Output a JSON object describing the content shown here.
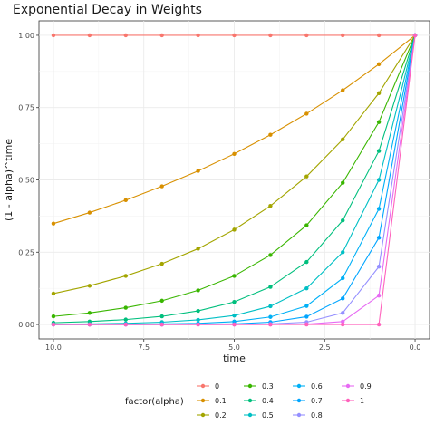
{
  "chart_data": {
    "type": "line",
    "title": "Exponential Decay in Weights",
    "xlabel": "time",
    "ylabel": "(1 - alpha)^time",
    "x": [
      10,
      9,
      8,
      7,
      6,
      5,
      4,
      3,
      2,
      1,
      0
    ],
    "xlim": [
      10.4,
      -0.4
    ],
    "x_reversed": true,
    "ylim": [
      -0.05,
      1.05
    ],
    "x_ticks": [
      10.0,
      7.5,
      5.0,
      2.5,
      0.0
    ],
    "x_tick_labels": [
      "10.0",
      "7.5",
      "5.0",
      "2.5",
      "0.0"
    ],
    "y_ticks": [
      0.0,
      0.25,
      0.5,
      0.75,
      1.0
    ],
    "y_tick_labels": [
      "0.00",
      "0.25",
      "0.50",
      "0.75",
      "1.00"
    ],
    "grid": true,
    "legend": {
      "title": "factor(alpha)",
      "placement": "bottom"
    },
    "series": [
      {
        "name": "0",
        "color": "#F8766D",
        "values": [
          1,
          1,
          1,
          1,
          1,
          1,
          1,
          1,
          1,
          1,
          1
        ]
      },
      {
        "name": "0.1",
        "color": "#D89000",
        "values": [
          0.349,
          0.387,
          0.43,
          0.478,
          0.531,
          0.59,
          0.656,
          0.729,
          0.81,
          0.9,
          1
        ]
      },
      {
        "name": "0.2",
        "color": "#A3A500",
        "values": [
          0.107,
          0.134,
          0.168,
          0.21,
          0.262,
          0.328,
          0.41,
          0.512,
          0.64,
          0.8,
          1
        ]
      },
      {
        "name": "0.3",
        "color": "#39B600",
        "values": [
          0.028,
          0.04,
          0.058,
          0.082,
          0.118,
          0.168,
          0.24,
          0.343,
          0.49,
          0.7,
          1
        ]
      },
      {
        "name": "0.4",
        "color": "#00BF7D",
        "values": [
          0.006,
          0.01,
          0.017,
          0.028,
          0.047,
          0.078,
          0.13,
          0.216,
          0.36,
          0.6,
          1
        ]
      },
      {
        "name": "0.5",
        "color": "#00BFC4",
        "values": [
          0.001,
          0.002,
          0.004,
          0.008,
          0.016,
          0.031,
          0.063,
          0.125,
          0.25,
          0.5,
          1
        ]
      },
      {
        "name": "0.6",
        "color": "#00B0F6",
        "values": [
          0.0,
          0.0,
          0.001,
          0.002,
          0.004,
          0.01,
          0.026,
          0.064,
          0.16,
          0.4,
          1
        ]
      },
      {
        "name": "0.7",
        "color": "#00A5FF",
        "values": [
          0.0,
          0.0,
          0.0,
          0.0,
          0.001,
          0.002,
          0.008,
          0.027,
          0.09,
          0.3,
          1
        ]
      },
      {
        "name": "0.8",
        "color": "#9590FF",
        "values": [
          0.0,
          0.0,
          0.0,
          0.0,
          0.0,
          0.0,
          0.002,
          0.008,
          0.04,
          0.2,
          1
        ]
      },
      {
        "name": "0.9",
        "color": "#E76BF3",
        "values": [
          0.0,
          0.0,
          0.0,
          0.0,
          0.0,
          0.0,
          0.0,
          0.001,
          0.01,
          0.1,
          1
        ]
      },
      {
        "name": "1",
        "color": "#FF62BC",
        "values": [
          0,
          0,
          0,
          0,
          0,
          0,
          0,
          0,
          0,
          0,
          1
        ]
      }
    ]
  }
}
